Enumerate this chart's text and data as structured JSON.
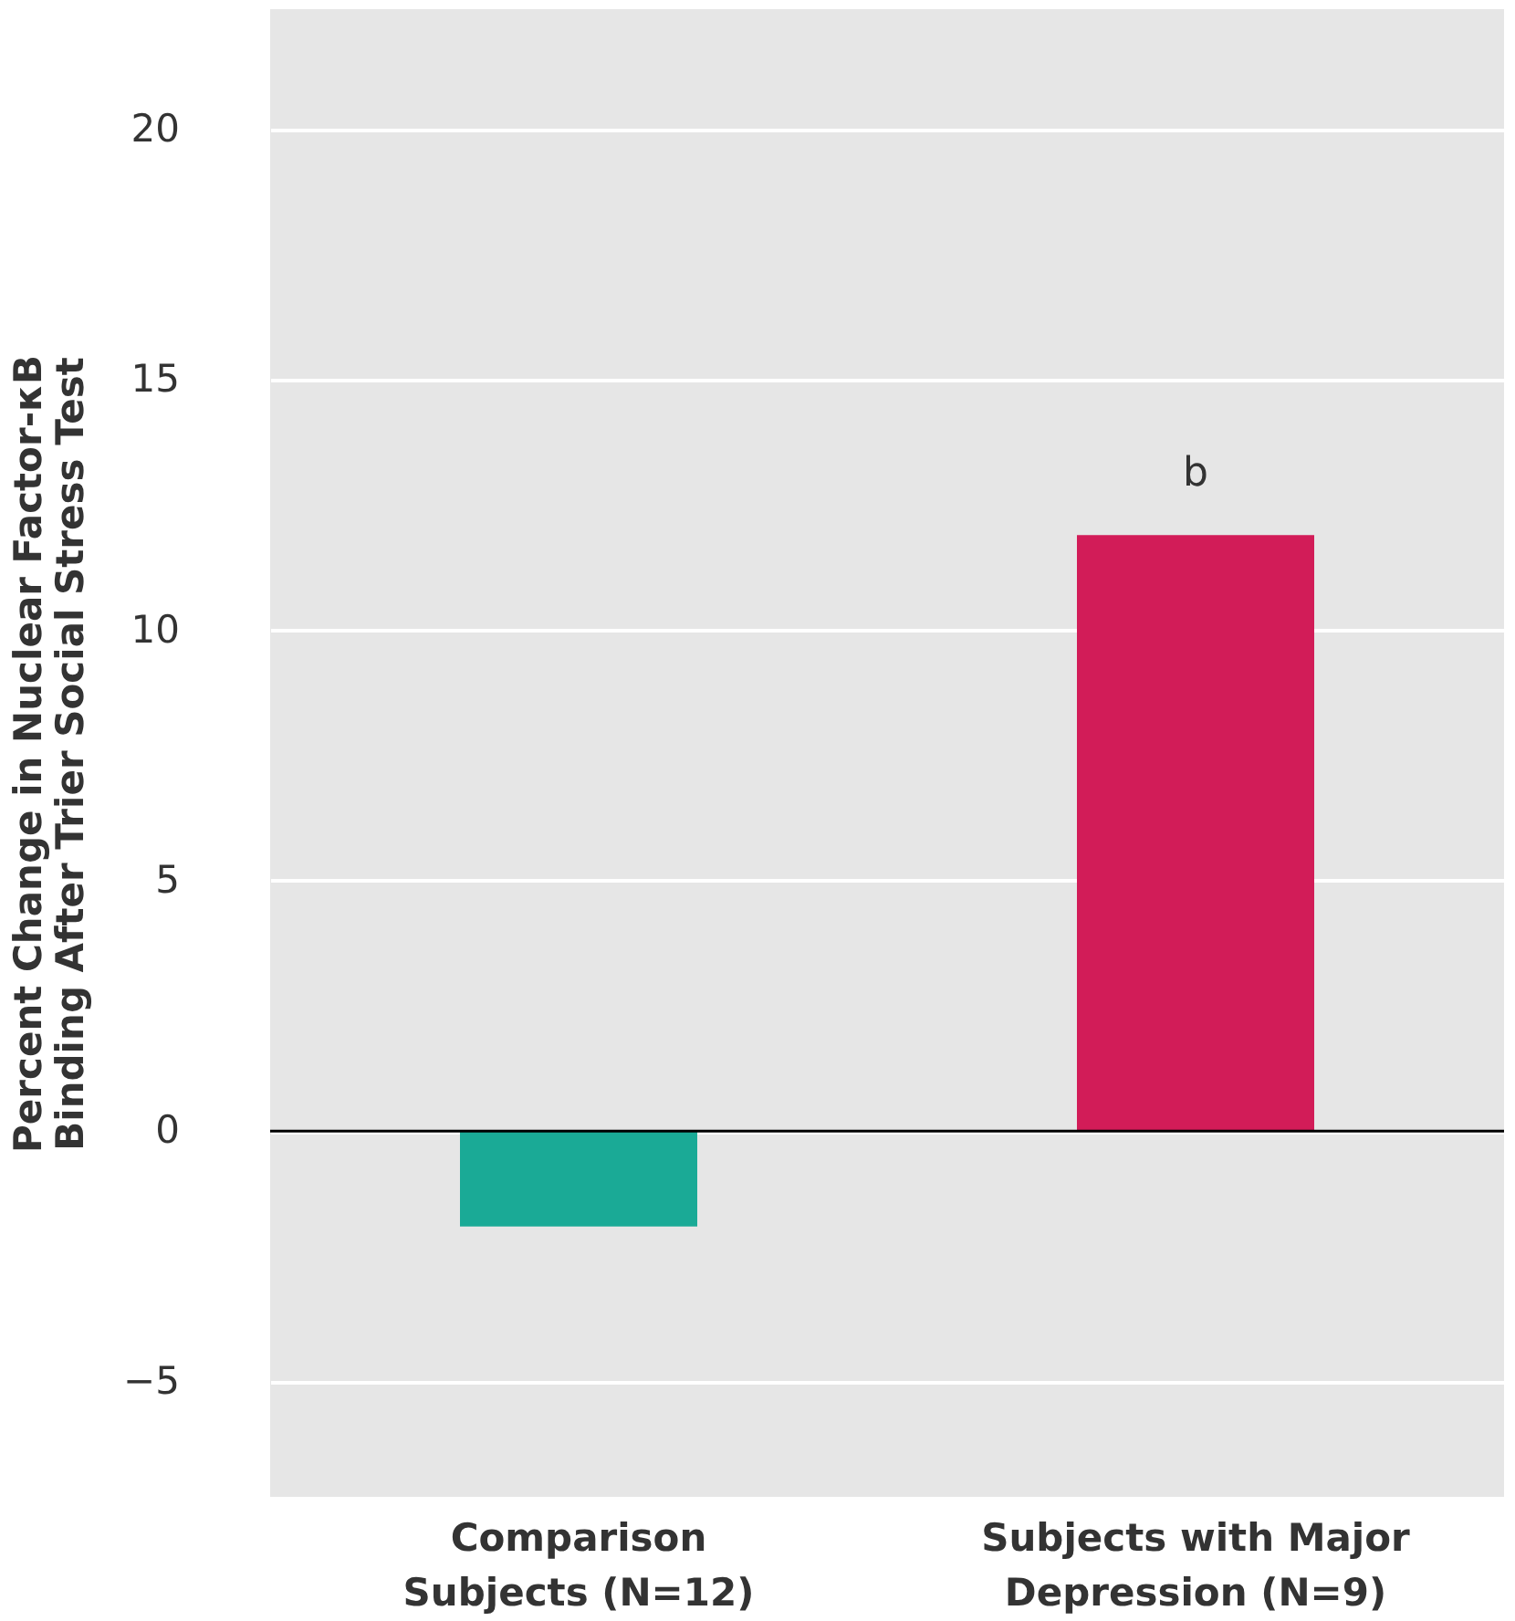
{
  "chart_data": {
    "type": "bar",
    "ylabel": "Percent Change in Nuclear Factor-κB Binding After Trier Social Stress Test",
    "categories": [
      "Comparison Subjects (N=12)",
      "Subjects with Major Depression (N=9)"
    ],
    "values": [
      -1.9,
      11.9
    ],
    "colors": [
      "#1aaa96",
      "#d21c58"
    ],
    "ylim": [
      -7.3,
      22.4
    ],
    "yticks": [
      {
        "value": -5,
        "label": "−5"
      },
      0,
      5,
      10,
      15,
      20
    ],
    "grid": "y",
    "ref_lines": [
      {
        "axis": "y",
        "value": 0,
        "color": "#000000"
      }
    ],
    "annotations": [
      "b"
    ]
  }
}
